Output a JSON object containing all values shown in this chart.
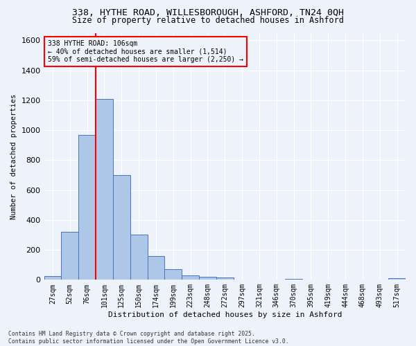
{
  "title_line1": "338, HYTHE ROAD, WILLESBOROUGH, ASHFORD, TN24 0QH",
  "title_line2": "Size of property relative to detached houses in Ashford",
  "xlabel": "Distribution of detached houses by size in Ashford",
  "ylabel": "Number of detached properties",
  "categories": [
    "27sqm",
    "52sqm",
    "76sqm",
    "101sqm",
    "125sqm",
    "150sqm",
    "174sqm",
    "199sqm",
    "223sqm",
    "248sqm",
    "272sqm",
    "297sqm",
    "321sqm",
    "346sqm",
    "370sqm",
    "395sqm",
    "419sqm",
    "444sqm",
    "468sqm",
    "493sqm",
    "517sqm"
  ],
  "values": [
    25,
    320,
    970,
    1210,
    700,
    300,
    160,
    70,
    30,
    20,
    15,
    0,
    0,
    0,
    8,
    0,
    0,
    0,
    0,
    0,
    12
  ],
  "bar_color": "#aec6e8",
  "bar_edge_color": "#4472c4",
  "annotation_line1": "338 HYTHE ROAD: 106sqm",
  "annotation_line2": "← 40% of detached houses are smaller (1,514)",
  "annotation_line3": "59% of semi-detached houses are larger (2,250) →",
  "vline_bar_index": 3,
  "ylim": [
    0,
    1650
  ],
  "yticks": [
    0,
    200,
    400,
    600,
    800,
    1000,
    1200,
    1400,
    1600
  ],
  "background_color": "#eef2fa",
  "grid_color": "#ffffff",
  "footer_line1": "Contains HM Land Registry data © Crown copyright and database right 2025.",
  "footer_line2": "Contains public sector information licensed under the Open Government Licence v3.0."
}
